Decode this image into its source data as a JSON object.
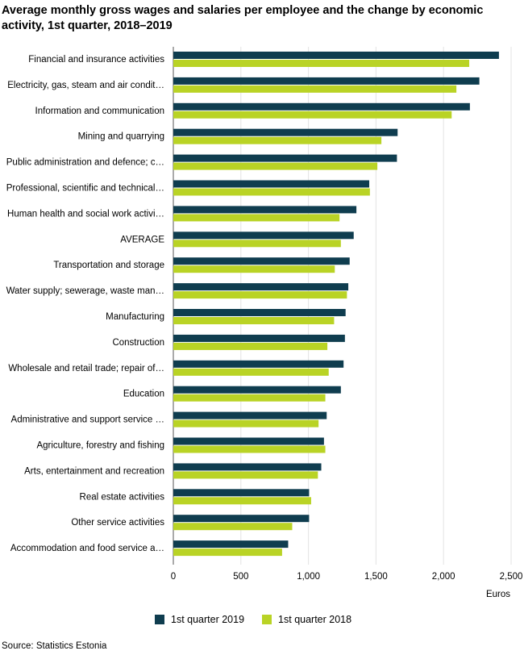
{
  "chart_data": {
    "type": "bar",
    "orientation": "horizontal",
    "title": "Average monthly gross wages and salaries per employee and the change by economic activity, 1st quarter, 2018–2019",
    "categories": [
      "Financial and insurance activities",
      "Electricity, gas, steam and air condit…",
      "Information and communication",
      "Mining and quarrying",
      "Public administration and defence; c…",
      "Professional, scientific and technical…",
      "Human health and social work activi…",
      "AVERAGE",
      "Transportation and storage",
      "Water supply; sewerage, waste man…",
      "Manufacturing",
      "Construction",
      "Wholesale and retail trade; repair of…",
      "Education",
      "Administrative and support service …",
      "Agriculture, forestry and fishing",
      "Arts, entertainment and recreation",
      "Real estate activities",
      "Other service activities",
      "Accommodation and food service a…"
    ],
    "series": [
      {
        "name": "1st quarter 2019",
        "color": "#0f3d4f",
        "values": [
          2410,
          2265,
          2195,
          1660,
          1655,
          1450,
          1355,
          1335,
          1305,
          1295,
          1275,
          1270,
          1260,
          1240,
          1135,
          1115,
          1095,
          1005,
          1005,
          850
        ]
      },
      {
        "name": "1st quarter 2018",
        "color": "#b9d325",
        "values": [
          2190,
          2095,
          2060,
          1540,
          1510,
          1455,
          1230,
          1240,
          1195,
          1285,
          1190,
          1140,
          1150,
          1125,
          1075,
          1125,
          1070,
          1020,
          880,
          805
        ]
      }
    ],
    "xlabel": "Euros",
    "xlim": [
      0,
      2500
    ],
    "xticks": [
      "0",
      "500",
      "1,000",
      "1,500",
      "2,000",
      "2,500"
    ],
    "xtick_values": [
      0,
      500,
      1000,
      1500,
      2000,
      2500
    ],
    "grid": "vertical",
    "legend_position": "bottom"
  },
  "source": "Source: Statistics Estonia"
}
